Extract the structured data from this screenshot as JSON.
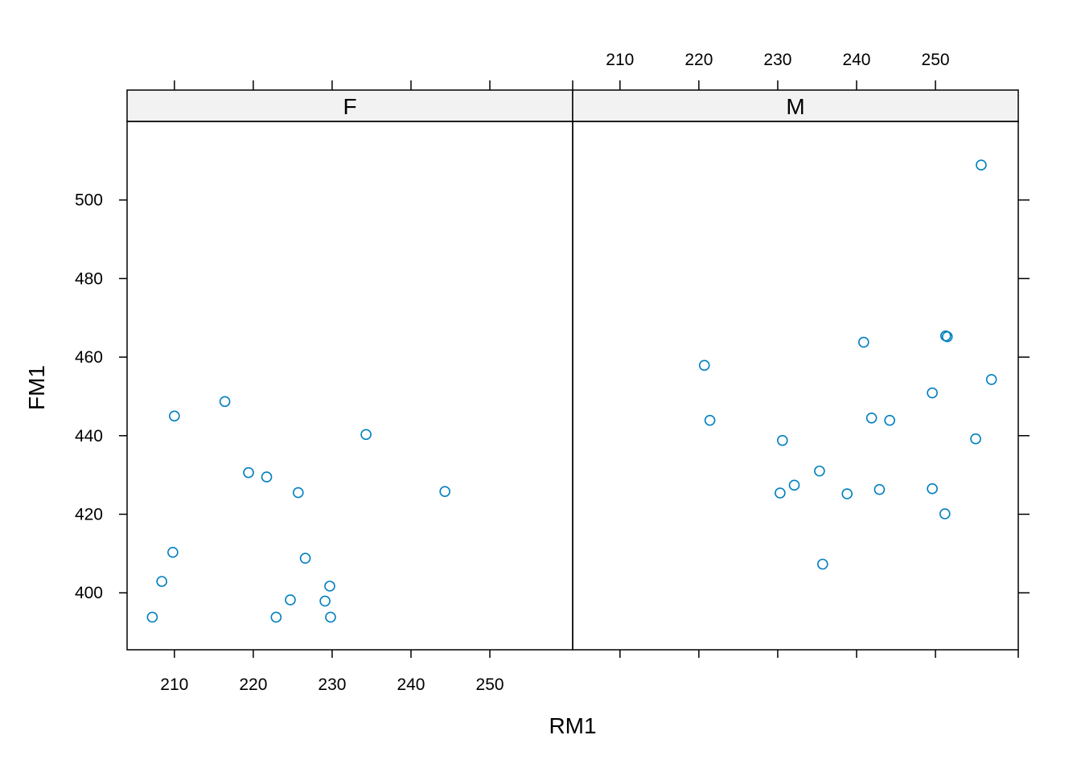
{
  "chart_data": {
    "type": "scatter",
    "xlabel": "RM1",
    "ylabel": "FM1",
    "xlim": [
      204,
      260.5
    ],
    "ylim": [
      385.5,
      520
    ],
    "x_ticks": [
      210,
      220,
      230,
      240,
      250
    ],
    "y_ticks": [
      400,
      420,
      440,
      460,
      480,
      500
    ],
    "point_color": "#0080c0",
    "strip_color": "#f2f2f2",
    "panels": [
      {
        "strip": "F",
        "points": [
          {
            "x": 207.2,
            "y": 393.8
          },
          {
            "x": 208.4,
            "y": 402.9
          },
          {
            "x": 209.8,
            "y": 410.3
          },
          {
            "x": 210.0,
            "y": 445.0
          },
          {
            "x": 216.4,
            "y": 448.7
          },
          {
            "x": 219.4,
            "y": 430.6
          },
          {
            "x": 221.7,
            "y": 429.5
          },
          {
            "x": 222.9,
            "y": 393.8
          },
          {
            "x": 224.7,
            "y": 398.2
          },
          {
            "x": 225.7,
            "y": 425.5
          },
          {
            "x": 226.6,
            "y": 408.8
          },
          {
            "x": 229.1,
            "y": 397.9
          },
          {
            "x": 229.7,
            "y": 401.7
          },
          {
            "x": 229.8,
            "y": 393.8
          },
          {
            "x": 234.3,
            "y": 440.3
          },
          {
            "x": 244.3,
            "y": 425.8
          }
        ]
      },
      {
        "strip": "M",
        "points": [
          {
            "x": 220.7,
            "y": 457.9
          },
          {
            "x": 221.4,
            "y": 443.9
          },
          {
            "x": 230.3,
            "y": 425.4
          },
          {
            "x": 230.6,
            "y": 438.8
          },
          {
            "x": 232.1,
            "y": 427.4
          },
          {
            "x": 235.3,
            "y": 431.0
          },
          {
            "x": 235.7,
            "y": 407.3
          },
          {
            "x": 238.8,
            "y": 425.2
          },
          {
            "x": 240.9,
            "y": 463.8
          },
          {
            "x": 241.9,
            "y": 444.5
          },
          {
            "x": 242.9,
            "y": 426.3
          },
          {
            "x": 244.2,
            "y": 443.9
          },
          {
            "x": 249.6,
            "y": 450.9
          },
          {
            "x": 249.6,
            "y": 426.5
          },
          {
            "x": 251.2,
            "y": 420.1
          },
          {
            "x": 251.3,
            "y": 465.4
          },
          {
            "x": 251.5,
            "y": 465.2
          },
          {
            "x": 255.1,
            "y": 439.2
          },
          {
            "x": 255.8,
            "y": 508.9
          },
          {
            "x": 257.1,
            "y": 454.3
          }
        ]
      }
    ]
  }
}
